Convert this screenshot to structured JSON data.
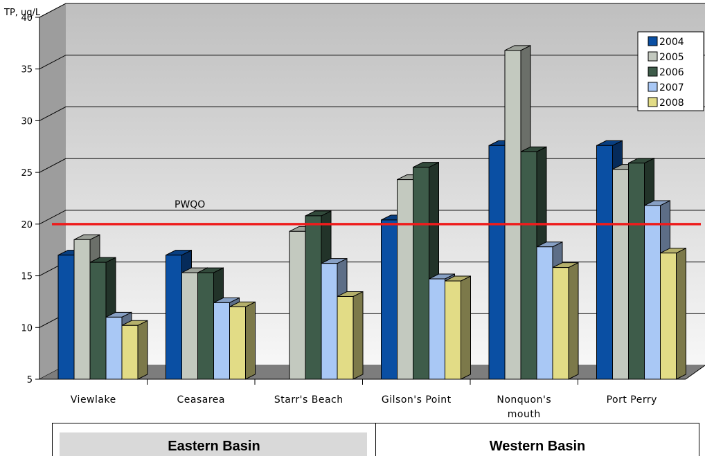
{
  "chart_data": {
    "type": "bar",
    "ylabel": "TP, ug/L",
    "ylim": [
      5,
      40
    ],
    "yticks": [
      5,
      10,
      15,
      20,
      25,
      30,
      35,
      40
    ],
    "categories": [
      "Viewlake",
      "Ceasarea",
      "Starr's Beach",
      "Gilson's Point",
      "Nonquon's mouth",
      "Port Perry"
    ],
    "category_lines": [
      [
        "Viewlake"
      ],
      [
        "Ceasarea"
      ],
      [
        "Starr's Beach"
      ],
      [
        "Gilson's Point"
      ],
      [
        "Nonquon's",
        "mouth"
      ],
      [
        "Port Perry"
      ]
    ],
    "series": [
      {
        "name": "2004",
        "color": "#0a4fa3",
        "values": [
          17,
          17,
          null,
          20.4,
          27.6,
          27.6
        ]
      },
      {
        "name": "2005",
        "color": "#c3c9bf",
        "values": [
          18.5,
          15.3,
          19.3,
          24.3,
          36.8,
          25.3
        ]
      },
      {
        "name": "2006",
        "color": "#3e5c4a",
        "values": [
          16.3,
          15.3,
          20.8,
          25.5,
          27,
          25.9
        ]
      },
      {
        "name": "2007",
        "color": "#a9c8f5",
        "values": [
          11,
          12.4,
          16.2,
          14.7,
          17.8,
          21.8
        ]
      },
      {
        "name": "2008",
        "color": "#e2dc86",
        "values": [
          10.2,
          12,
          13,
          14.5,
          15.8,
          17.2
        ]
      }
    ],
    "reference_line": {
      "label": "PWQO",
      "value": 20,
      "color": "#ee1c1c"
    },
    "grid": true,
    "legend": "top-right"
  },
  "basins": {
    "eastern": "Eastern Basin",
    "western": "Western Basin"
  }
}
